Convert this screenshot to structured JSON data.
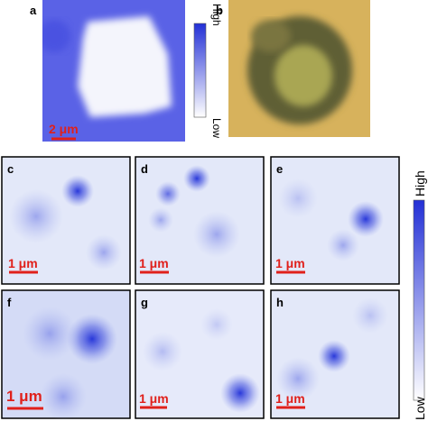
{
  "panels": [
    {
      "label": "a",
      "scale_bar": "2 μm"
    },
    {
      "label": "b"
    },
    {
      "label": "c",
      "scale_bar": "1 μm"
    },
    {
      "label": "d",
      "scale_bar": "1 μm"
    },
    {
      "label": "e",
      "scale_bar": "1 μm"
    },
    {
      "label": "f",
      "scale_bar": "1 μm"
    },
    {
      "label": "g",
      "scale_bar": "1 μm"
    },
    {
      "label": "h",
      "scale_bar": "1 μm"
    }
  ],
  "colorbars": [
    {
      "high": "High",
      "low": "Low"
    },
    {
      "high": "High",
      "low": "Low"
    }
  ]
}
